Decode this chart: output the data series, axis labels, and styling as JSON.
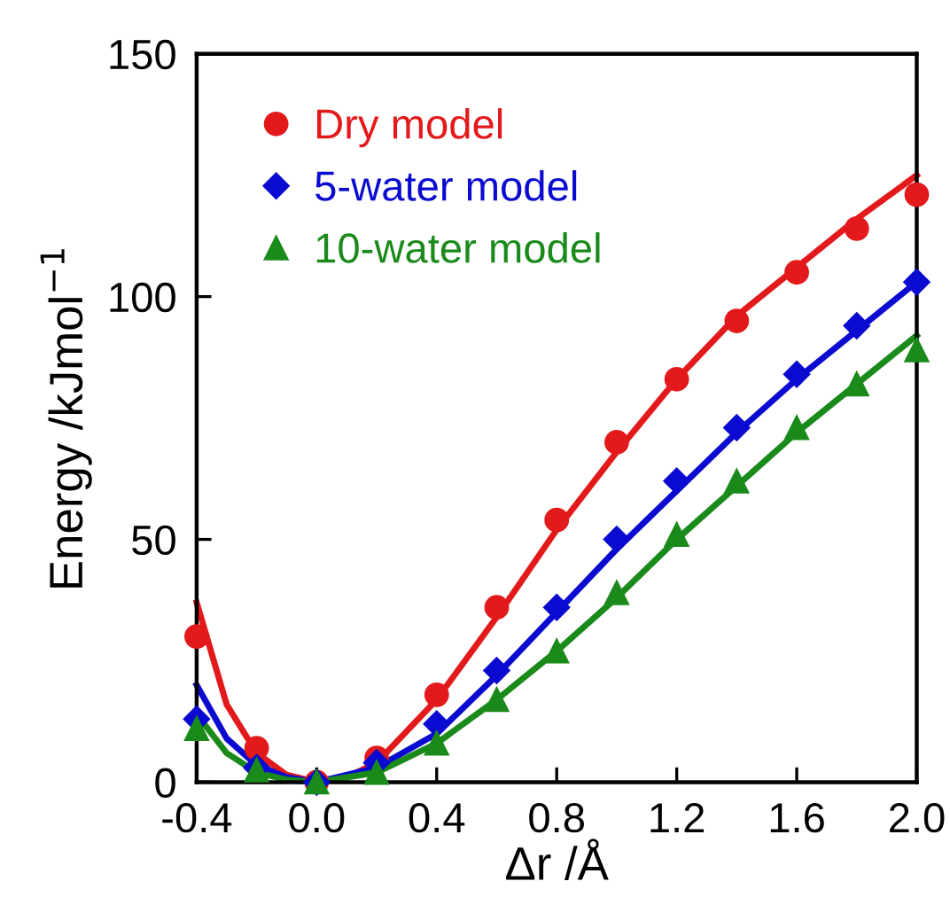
{
  "chart_data": {
    "type": "scatter",
    "xlabel": "Δr /Å",
    "ylabel": "Energy /kJmol$^{−1}$",
    "x": [
      -0.4,
      -0.2,
      0.0,
      0.2,
      0.4,
      0.6,
      0.8,
      1.0,
      1.2,
      1.4,
      1.6,
      1.8,
      2.0
    ],
    "xlim": [
      -0.4,
      2.0
    ],
    "ylim": [
      0,
      150
    ],
    "xticks": [
      -0.4,
      {
        "value": 0,
        "label": "0.0"
      },
      0.4,
      0.8,
      1.2,
      1.6,
      {
        "value": 2,
        "label": "2.0"
      }
    ],
    "yticks": [
      0,
      50,
      100,
      150
    ],
    "grid": false,
    "legend": "top left",
    "series": [
      {
        "name": "Dry model",
        "color": "#e31a1c",
        "marker": "circle",
        "values": [
          30,
          7,
          0,
          5,
          18,
          36,
          54,
          70,
          83,
          95,
          105,
          114,
          121
        ]
      },
      {
        "name": "5-water model",
        "color": "#0a0ad0",
        "marker": "diamond",
        "values": [
          13,
          3,
          0,
          4,
          12,
          23,
          36,
          50,
          62,
          73,
          84,
          94,
          103
        ]
      },
      {
        "name": "10-water model",
        "color": "#1a8a1a",
        "marker": "triangle",
        "values": [
          11,
          2.5,
          0,
          2,
          8,
          17,
          27,
          39,
          51,
          62,
          73,
          82,
          89
        ]
      },
      {
        "type": "line",
        "color": "#e31a1c",
        "x": [
          -0.4,
          -0.3,
          -0.2,
          -0.1,
          0,
          0.1,
          0.2,
          0.4,
          0.6,
          0.8,
          1.0,
          1.2,
          1.4,
          1.6,
          1.8,
          2.0
        ],
        "values": [
          37,
          16,
          6,
          1.5,
          0,
          1,
          4,
          17,
          34,
          52,
          68,
          83,
          96,
          106,
          116,
          125
        ]
      },
      {
        "type": "line",
        "color": "#0a0ad0",
        "x": [
          -0.4,
          -0.3,
          -0.2,
          -0.1,
          0,
          0.2,
          0.4,
          0.6,
          0.8,
          1.0,
          1.2,
          1.4,
          1.6,
          1.8,
          2.0
        ],
        "values": [
          20,
          9,
          3.5,
          1,
          0,
          3,
          10,
          22,
          35,
          48,
          60,
          72,
          83,
          93,
          103
        ]
      },
      {
        "type": "line",
        "color": "#1a8a1a",
        "x": [
          -0.4,
          -0.3,
          -0.2,
          -0.1,
          0,
          0.2,
          0.4,
          0.6,
          0.8,
          1.0,
          1.2,
          1.4,
          1.6,
          1.8,
          2.0
        ],
        "values": [
          14,
          6,
          2,
          0.5,
          0,
          2,
          8,
          17,
          27,
          38,
          50,
          61,
          72,
          82,
          92
        ]
      }
    ]
  }
}
